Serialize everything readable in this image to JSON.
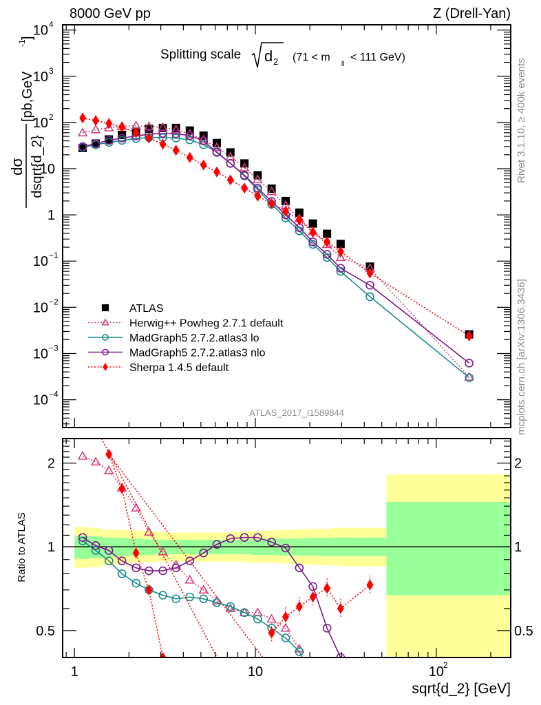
{
  "header": {
    "left": "8000 GeV pp",
    "right": "Z (Drell-Yan)"
  },
  "side_labels": {
    "rivet": "Rivet 3.1.10, ≥ 400k events",
    "mcplots": "mcplots.cern.ch [arXiv:1306.3436]"
  },
  "chart_data": [
    {
      "type": "scatter",
      "panel": "main",
      "title": "Splitting scale √d₂ (71 < m_ll < 111 GeV)",
      "title_parts": {
        "main": "Splitting scale",
        "sym": "d",
        "sub": "2",
        "range_open": "(71 < m",
        "range_sub": "ll",
        "range_close": "< 111 GeV)"
      },
      "ylabel": "dσ/dsqrt{d_2} [pb,GeV⁻¹]",
      "ylabel_parts": {
        "num": "dσ",
        "den": "dsqrt{d_2}",
        "unit": "[pb,GeV",
        "unit_exp": "-1",
        "unit_close": "]"
      },
      "xscale": "log",
      "yscale": "log",
      "xlim": [
        0.86,
        258
      ],
      "ylim": [
        2.5e-05,
        13000
      ],
      "yticks": [
        {
          "v": 0.0001,
          "label": "10",
          "exp": "−4"
        },
        {
          "v": 0.001,
          "label": "10",
          "exp": "−3"
        },
        {
          "v": 0.01,
          "label": "10",
          "exp": "−2"
        },
        {
          "v": 0.1,
          "label": "10",
          "exp": "−1"
        },
        {
          "v": 1,
          "label": "1",
          "exp": ""
        },
        {
          "v": 10,
          "label": "10",
          "exp": ""
        },
        {
          "v": 100,
          "label": "10",
          "exp": "2"
        },
        {
          "v": 1000,
          "label": "10",
          "exp": "3"
        },
        {
          "v": 10000,
          "label": "10",
          "exp": "4"
        }
      ],
      "watermark": "ATLAS_2017_I1589844",
      "legend_position": "bottom-left",
      "x": [
        1.11,
        1.31,
        1.55,
        1.83,
        2.19,
        2.58,
        3.08,
        3.64,
        4.34,
        5.17,
        6.12,
        7.28,
        8.7,
        10.3,
        12.3,
        14.7,
        17.5,
        20.8,
        24.9,
        29.6,
        43.0,
        152
      ],
      "series": [
        {
          "name": "ATLAS",
          "key": "atlas",
          "color": "#000000",
          "marker": "square",
          "line": "none",
          "values": [
            28,
            35,
            43,
            54,
            63,
            73,
            76,
            76,
            67,
            52,
            36,
            22.5,
            13,
            7.2,
            3.7,
            2.0,
            1.12,
            0.65,
            0.39,
            0.235,
            0.076,
            0.0026
          ]
        },
        {
          "name": "Herwig++ Powheg 2.7.1 default",
          "key": "herwig",
          "color": "#d3457c",
          "marker": "triangle",
          "line": "dotted",
          "values": [
            60,
            70,
            77,
            83,
            85,
            82,
            78,
            70,
            56,
            42,
            29,
            18,
            10.5,
            5.8,
            3.2,
            1.6,
            0.84,
            0.44,
            0.23,
            0.12,
            0.07,
            0.00031
          ]
        },
        {
          "name": "MadGraph5 2.7.2.atlas3 lo",
          "key": "mglo",
          "color": "#1a8a8a",
          "marker": "circle",
          "line": "solid",
          "values": [
            29,
            33,
            37,
            41,
            45,
            47,
            47,
            46,
            42,
            33,
            23,
            13,
            7.0,
            3.5,
            1.7,
            0.85,
            0.45,
            0.23,
            0.12,
            0.06,
            0.017,
            0.0003
          ]
        },
        {
          "name": "MadGraph5 2.7.2.atlas3 nlo",
          "key": "mgnlo",
          "color": "#7d1a8a",
          "marker": "circle",
          "line": "solid",
          "values": [
            30,
            35,
            41,
            46,
            51,
            56,
            58,
            57,
            52,
            40,
            22.5,
            13,
            7.2,
            3.8,
            1.95,
            1.0,
            0.53,
            0.26,
            0.14,
            0.07,
            0.03,
            0.00062
          ]
        },
        {
          "name": "Sherpa 1.4.5 default",
          "key": "sherpa",
          "color": "#ff0000",
          "marker": "diamond",
          "line": "dotted",
          "values": [
            125,
            110,
            95,
            80,
            60,
            46,
            34,
            25,
            17.5,
            12,
            8.5,
            5.7,
            3.8,
            2.55,
            1.75,
            1.2,
            0.78,
            0.42,
            0.26,
            0.16,
            0.055,
            0.0024
          ]
        }
      ]
    },
    {
      "type": "scatter",
      "panel": "ratio",
      "ylabel": "Ratio to ATLAS",
      "xlabel": "sqrt{d_2} [GeV]",
      "xscale": "log",
      "yscale": "log",
      "xlim": [
        0.86,
        258
      ],
      "ylim": [
        0.4,
        2.45
      ],
      "xticks": [
        {
          "v": 1,
          "label": "1",
          "exp": ""
        },
        {
          "v": 10,
          "label": "10",
          "exp": ""
        },
        {
          "v": 100,
          "label": "10",
          "exp": "2"
        }
      ],
      "yticks": [
        {
          "v": 0.5,
          "label": "0.5"
        },
        {
          "v": 1,
          "label": "1"
        },
        {
          "v": 2,
          "label": "2"
        }
      ],
      "reference_line": 1,
      "bands": {
        "inner_color": "#99ff99",
        "outer_color": "#ffff99",
        "bins": [
          {
            "lo": 1.0,
            "hi": 1.21,
            "inner": [
              0.905,
              1.095
            ],
            "outer": [
              0.84,
              1.18
            ]
          },
          {
            "lo": 1.21,
            "hi": 1.42,
            "inner": [
              0.91,
              1.09
            ],
            "outer": [
              0.845,
              1.17
            ]
          },
          {
            "lo": 1.42,
            "hi": 1.68,
            "inner": [
              0.92,
              1.08
            ],
            "outer": [
              0.86,
              1.155
            ]
          },
          {
            "lo": 1.68,
            "hi": 2.0,
            "inner": [
              0.925,
              1.075
            ],
            "outer": [
              0.87,
              1.15
            ]
          },
          {
            "lo": 2.0,
            "hi": 2.37,
            "inner": [
              0.93,
              1.07
            ],
            "outer": [
              0.875,
              1.145
            ]
          },
          {
            "lo": 2.37,
            "hi": 2.82,
            "inner": [
              0.935,
              1.065
            ],
            "outer": [
              0.88,
              1.14
            ]
          },
          {
            "lo": 2.82,
            "hi": 3.35,
            "inner": [
              0.94,
              1.06
            ],
            "outer": [
              0.885,
              1.13
            ]
          },
          {
            "lo": 3.35,
            "hi": 3.98,
            "inner": [
              0.94,
              1.06
            ],
            "outer": [
              0.885,
              1.125
            ]
          },
          {
            "lo": 3.98,
            "hi": 4.73,
            "inner": [
              0.94,
              1.06
            ],
            "outer": [
              0.885,
              1.125
            ]
          },
          {
            "lo": 4.73,
            "hi": 5.62,
            "inner": [
              0.94,
              1.06
            ],
            "outer": [
              0.885,
              1.125
            ]
          },
          {
            "lo": 5.62,
            "hi": 6.68,
            "inner": [
              0.94,
              1.06
            ],
            "outer": [
              0.885,
              1.125
            ]
          },
          {
            "lo": 6.68,
            "hi": 7.94,
            "inner": [
              0.94,
              1.06
            ],
            "outer": [
              0.885,
              1.13
            ]
          },
          {
            "lo": 7.94,
            "hi": 9.44,
            "inner": [
              0.94,
              1.065
            ],
            "outer": [
              0.88,
              1.135
            ]
          },
          {
            "lo": 9.44,
            "hi": 11.2,
            "inner": [
              0.935,
              1.065
            ],
            "outer": [
              0.875,
              1.14
            ]
          },
          {
            "lo": 11.2,
            "hi": 13.3,
            "inner": [
              0.935,
              1.07
            ],
            "outer": [
              0.875,
              1.145
            ]
          },
          {
            "lo": 13.3,
            "hi": 15.8,
            "inner": [
              0.93,
              1.07
            ],
            "outer": [
              0.87,
              1.15
            ]
          },
          {
            "lo": 15.8,
            "hi": 18.8,
            "inner": [
              0.93,
              1.07
            ],
            "outer": [
              0.865,
              1.155
            ]
          },
          {
            "lo": 18.8,
            "hi": 22.4,
            "inner": [
              0.93,
              1.075
            ],
            "outer": [
              0.86,
              1.16
            ]
          },
          {
            "lo": 22.4,
            "hi": 26.6,
            "inner": [
              0.925,
              1.075
            ],
            "outer": [
              0.86,
              1.16
            ]
          },
          {
            "lo": 26.6,
            "hi": 31.6,
            "inner": [
              0.925,
              1.08
            ],
            "outer": [
              0.855,
              1.17
            ]
          },
          {
            "lo": 31.6,
            "hi": 53,
            "inner": [
              0.925,
              1.08
            ],
            "outer": [
              0.85,
              1.17
            ]
          },
          {
            "lo": 53,
            "hi": 258,
            "inner": [
              0.67,
              1.45
            ],
            "outer": [
              0.4,
              1.82
            ]
          }
        ]
      },
      "x": [
        1.11,
        1.31,
        1.55,
        1.83,
        2.19,
        2.58,
        3.08,
        3.64,
        4.34,
        5.17,
        6.12,
        7.28,
        8.7,
        10.3,
        12.3,
        14.7,
        17.5,
        20.8,
        24.9,
        29.6,
        43.0,
        152
      ],
      "series": [
        {
          "name": "Herwig++ Powheg 2.7.1 default",
          "key": "herwig",
          "color": "#d3457c",
          "marker": "triangle",
          "line": "dotted",
          "values": [
            2.12,
            2.02,
            1.88,
            1.63,
            1.38,
            1.13,
            0.96,
            0.86,
            0.76,
            0.7,
            0.64,
            0.6,
            0.58,
            0.58,
            0.55,
            0.51,
            0.43,
            null,
            null,
            null,
            null,
            null
          ]
        },
        {
          "name": "MadGraph5 2.7.2.atlas3 lo",
          "key": "mglo",
          "color": "#1a8a8a",
          "marker": "circle",
          "line": "solid",
          "values": [
            1.05,
            0.97,
            0.89,
            0.8,
            0.74,
            0.7,
            0.67,
            0.65,
            0.66,
            0.65,
            0.63,
            0.61,
            0.58,
            0.55,
            0.51,
            0.47,
            0.42,
            null,
            null,
            null,
            null,
            null
          ]
        },
        {
          "name": "MadGraph5 2.7.2.atlas3 nlo",
          "key": "mgnlo",
          "color": "#7d1a8a",
          "marker": "circle",
          "line": "solid",
          "values": [
            1.08,
            1.01,
            0.97,
            0.89,
            0.84,
            0.82,
            0.82,
            0.84,
            0.89,
            0.95,
            1.02,
            1.07,
            1.08,
            1.08,
            1.04,
            0.99,
            0.84,
            0.72,
            0.51,
            0.4,
            null,
            null
          ]
        },
        {
          "name": "Sherpa 1.4.5 default",
          "key": "sherpa",
          "color": "#ff0000",
          "marker": "diamond",
          "line": "dotted",
          "values": [
            null,
            null,
            2.15,
            1.62,
            0.95,
            0.7,
            0.4,
            null,
            null,
            null,
            null,
            null,
            null,
            null,
            0.49,
            0.56,
            0.61,
            0.66,
            0.71,
            0.6,
            0.73,
            null
          ],
          "entry_from": [
            1.41,
            2.45
          ],
          "exit_to": [
            11.0,
            0.4
          ]
        }
      ]
    }
  ]
}
